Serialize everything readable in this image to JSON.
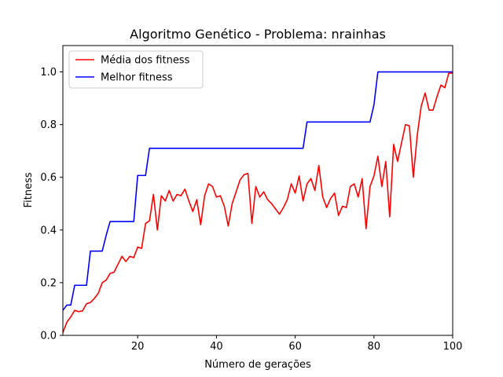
{
  "chart_data": {
    "type": "line",
    "title": "Algoritmo Genético - Problema: nrainhas",
    "xlabel": "Número de gerações",
    "ylabel": "Fitness",
    "xlim": [
      1,
      100
    ],
    "ylim": [
      0,
      1.1
    ],
    "xticks": [
      20,
      40,
      60,
      80,
      100
    ],
    "xtick_labels": [
      "20",
      "40",
      "60",
      "80",
      "100"
    ],
    "yticks": [
      0,
      0.2,
      0.4,
      0.6,
      0.8,
      1.0
    ],
    "ytick_labels": [
      "0.0",
      "0.2",
      "0.4",
      "0.6",
      "0.8",
      "1.0"
    ],
    "grid": false,
    "legend": "top-left",
    "x": [
      1,
      2,
      3,
      4,
      5,
      6,
      7,
      8,
      9,
      10,
      11,
      12,
      13,
      14,
      15,
      16,
      17,
      18,
      19,
      20,
      21,
      22,
      23,
      24,
      25,
      26,
      27,
      28,
      29,
      30,
      31,
      32,
      33,
      34,
      35,
      36,
      37,
      38,
      39,
      40,
      41,
      42,
      43,
      44,
      45,
      46,
      47,
      48,
      49,
      50,
      51,
      52,
      53,
      54,
      55,
      56,
      57,
      58,
      59,
      60,
      61,
      62,
      63,
      64,
      65,
      66,
      67,
      68,
      69,
      70,
      71,
      72,
      73,
      74,
      75,
      76,
      77,
      78,
      79,
      80,
      81,
      82,
      83,
      84,
      85,
      86,
      87,
      88,
      89,
      90,
      91,
      92,
      93,
      94,
      95,
      96,
      97,
      98,
      99,
      100
    ],
    "series": [
      {
        "name": "Média dos fitness",
        "color": "#ff0000",
        "values": [
          0.01,
          0.05,
          0.07,
          0.095,
          0.09,
          0.093,
          0.12,
          0.125,
          0.14,
          0.16,
          0.2,
          0.21,
          0.235,
          0.24,
          0.27,
          0.3,
          0.28,
          0.3,
          0.295,
          0.335,
          0.33,
          0.425,
          0.435,
          0.535,
          0.4,
          0.53,
          0.51,
          0.55,
          0.51,
          0.535,
          0.53,
          0.555,
          0.51,
          0.47,
          0.515,
          0.42,
          0.53,
          0.575,
          0.565,
          0.525,
          0.53,
          0.49,
          0.415,
          0.5,
          0.545,
          0.59,
          0.61,
          0.615,
          0.425,
          0.565,
          0.525,
          0.545,
          0.515,
          0.5,
          0.48,
          0.46,
          0.485,
          0.515,
          0.575,
          0.54,
          0.605,
          0.51,
          0.575,
          0.595,
          0.55,
          0.645,
          0.525,
          0.485,
          0.52,
          0.54,
          0.455,
          0.49,
          0.485,
          0.565,
          0.575,
          0.525,
          0.595,
          0.405,
          0.565,
          0.605,
          0.68,
          0.565,
          0.66,
          0.45,
          0.725,
          0.66,
          0.73,
          0.8,
          0.795,
          0.6,
          0.76,
          0.87,
          0.92,
          0.855,
          0.855,
          0.905,
          0.95,
          0.94,
          0.995,
          0.995
        ]
      },
      {
        "name": "Melhor fitness",
        "color": "#0000ff",
        "values": [
          0.095,
          0.115,
          0.115,
          0.19,
          0.19,
          0.19,
          0.19,
          0.32,
          0.32,
          0.32,
          0.32,
          0.38,
          0.432,
          0.432,
          0.432,
          0.432,
          0.432,
          0.432,
          0.432,
          0.607,
          0.607,
          0.607,
          0.71,
          0.71,
          0.71,
          0.71,
          0.71,
          0.71,
          0.71,
          0.71,
          0.71,
          0.71,
          0.71,
          0.71,
          0.71,
          0.71,
          0.71,
          0.71,
          0.71,
          0.71,
          0.71,
          0.71,
          0.71,
          0.71,
          0.71,
          0.71,
          0.71,
          0.71,
          0.71,
          0.71,
          0.71,
          0.71,
          0.71,
          0.71,
          0.71,
          0.71,
          0.71,
          0.71,
          0.71,
          0.71,
          0.71,
          0.71,
          0.81,
          0.81,
          0.81,
          0.81,
          0.81,
          0.81,
          0.81,
          0.81,
          0.81,
          0.81,
          0.81,
          0.81,
          0.81,
          0.81,
          0.81,
          0.81,
          0.81,
          0.875,
          1.0,
          1.0,
          1.0,
          1.0,
          1.0,
          1.0,
          1.0,
          1.0,
          1.0,
          1.0,
          1.0,
          1.0,
          1.0,
          1.0,
          1.0,
          1.0,
          1.0,
          1.0,
          1.0,
          1.0
        ]
      }
    ]
  }
}
